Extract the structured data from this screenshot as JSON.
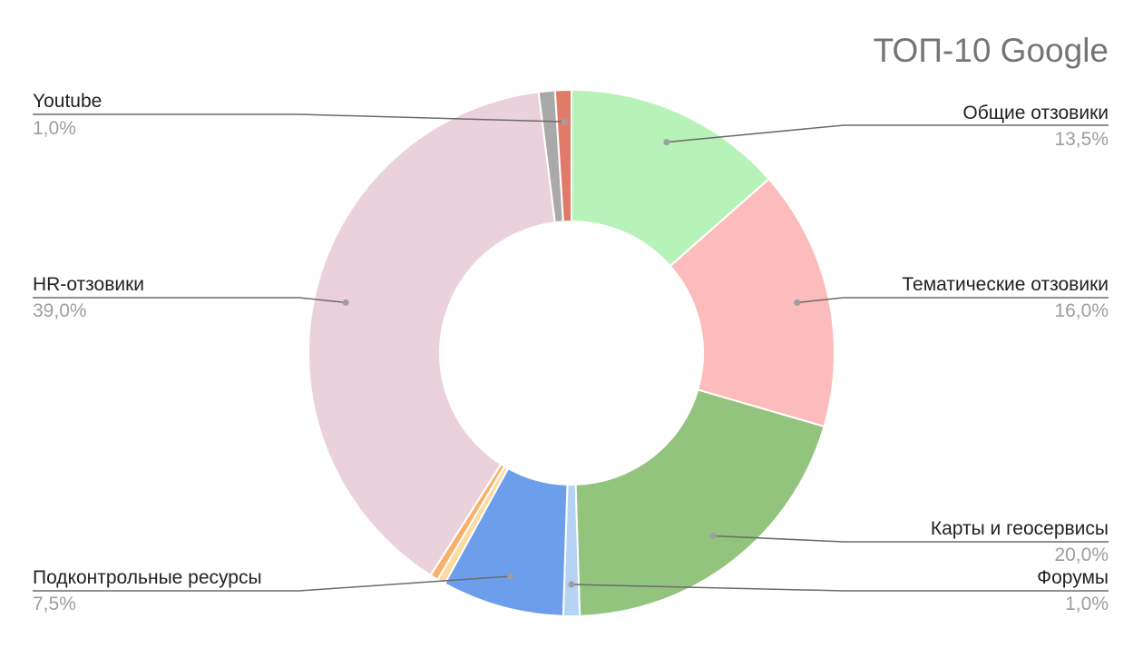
{
  "chart_data": {
    "type": "pie",
    "title": "ТОП-10 Google",
    "donut": true,
    "legend": "callout labels",
    "slices": [
      {
        "label": "Общие отзовики",
        "value": 13.5,
        "value_text": "13,5%",
        "color": "#b7f2b8"
      },
      {
        "label": "Тематические отзовики",
        "value": 16.0,
        "value_text": "16,0%",
        "color": "#fbbcbb"
      },
      {
        "label": "Карты и геосервисы",
        "value": 20.0,
        "value_text": "20,0%",
        "color": "#93c47d"
      },
      {
        "label": "Форумы",
        "value": 1.0,
        "value_text": "1,0%",
        "color": "#b4d3f5"
      },
      {
        "label": "Подконтрольные ресурсы",
        "value": 7.5,
        "value_text": "7,5%",
        "color": "#6d9eeb"
      },
      {
        "label": "",
        "value": 0.5,
        "value_text": "",
        "color": "#fcdba0"
      },
      {
        "label": "",
        "value": 0.5,
        "value_text": "",
        "color": "#f6b26b"
      },
      {
        "label": "HR-отзовики",
        "value": 39.0,
        "value_text": "39,0%",
        "color": "#ead1dc"
      },
      {
        "label": "",
        "value": 1.0,
        "value_text": "",
        "color": "#a9a9a9"
      },
      {
        "label": "Youtube",
        "value": 1.0,
        "value_text": "1,0%",
        "color": "#e07b6a"
      }
    ]
  }
}
